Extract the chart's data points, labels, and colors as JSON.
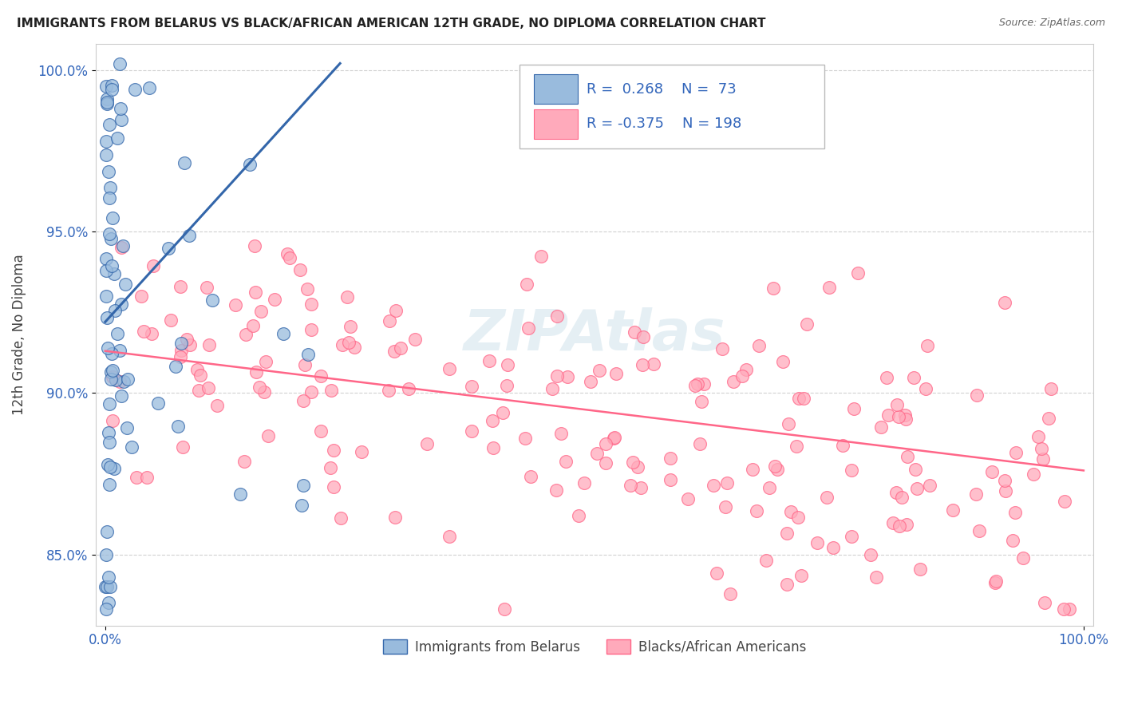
{
  "title": "IMMIGRANTS FROM BELARUS VS BLACK/AFRICAN AMERICAN 12TH GRADE, NO DIPLOMA CORRELATION CHART",
  "source": "Source: ZipAtlas.com",
  "ylabel": "12th Grade, No Diploma",
  "watermark": "ZIPAtlas",
  "blue_color": "#99BBDD",
  "pink_color": "#FFAABB",
  "blue_line_color": "#3366AA",
  "pink_line_color": "#FF6688",
  "xlim": [
    -0.01,
    1.01
  ],
  "ylim": [
    0.828,
    1.008
  ],
  "yticks": [
    0.85,
    0.9,
    0.95,
    1.0
  ],
  "ytick_labels": [
    "85.0%",
    "90.0%",
    "95.0%",
    "100.0%"
  ],
  "xtick_labels": [
    "0.0%",
    "100.0%"
  ],
  "xticks": [
    0.0,
    1.0
  ],
  "blue_trend_x": [
    0.0,
    0.24
  ],
  "blue_trend_y": [
    0.922,
    1.002
  ],
  "pink_trend_x": [
    0.0,
    1.0
  ],
  "pink_trend_y": [
    0.913,
    0.876
  ]
}
